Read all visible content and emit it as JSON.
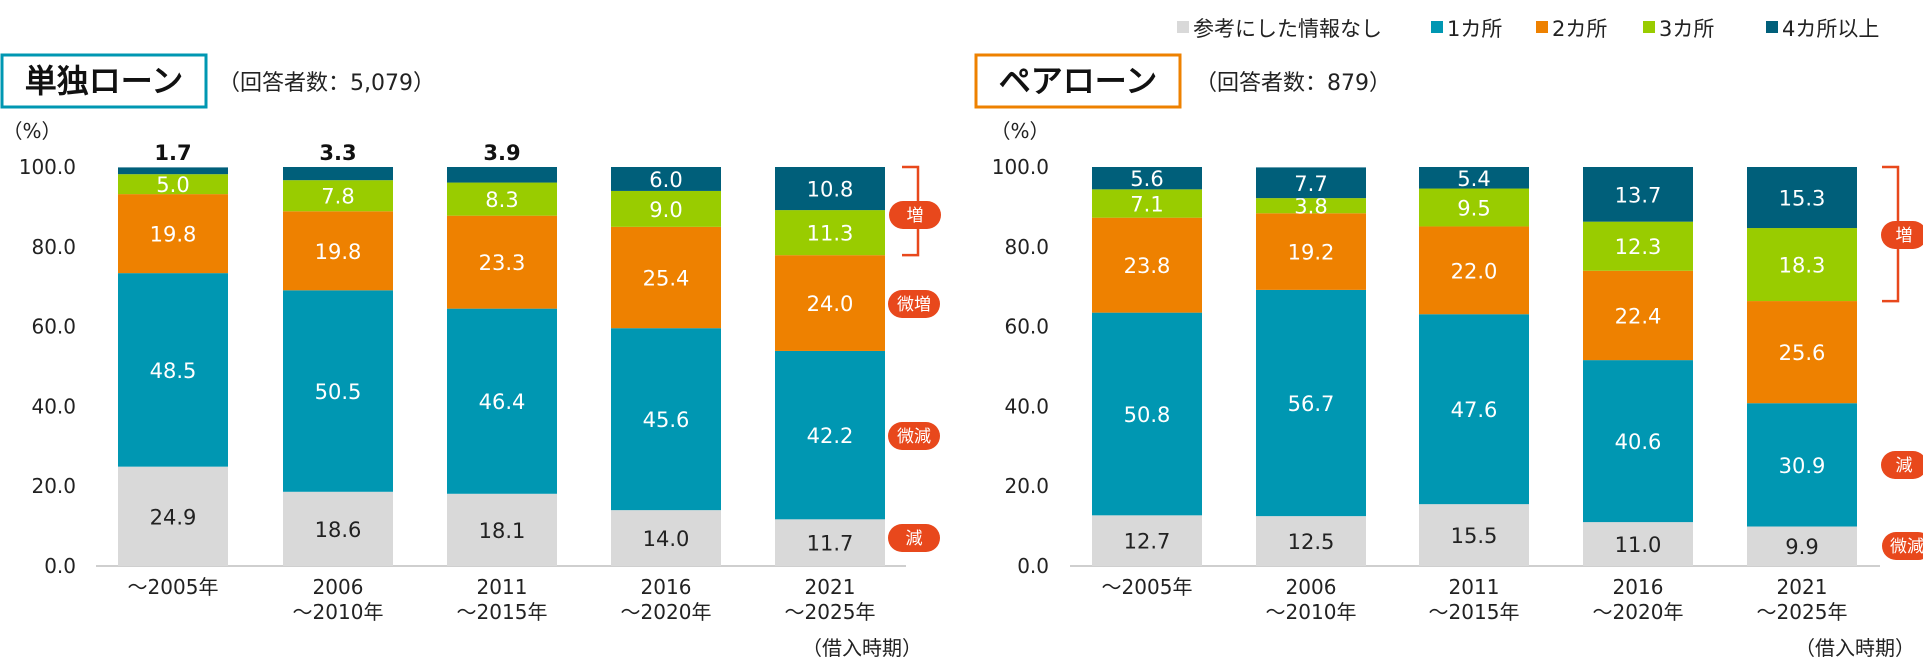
{
  "legend": {
    "items": [
      {
        "label": "参考にした情報なし",
        "color": "#d9d9d9"
      },
      {
        "label": "1カ所",
        "color": "#0097b2"
      },
      {
        "label": "2カ所",
        "color": "#ee8100"
      },
      {
        "label": "3カ所",
        "color": "#99cc00"
      },
      {
        "label": "4カ所以上",
        "color": "#005f7a"
      }
    ]
  },
  "period_caption": "（借入時期）",
  "chart_data": [
    {
      "type": "bar",
      "stacked": true,
      "title": "単独ローン",
      "subtitle": "（回答者数：5,079）",
      "title_color": "#0097b2",
      "ylabel": "（%）",
      "ylim": [
        0,
        100
      ],
      "yticks": [
        "100.0",
        "80.0",
        "60.0",
        "40.0",
        "20.0",
        "0.0"
      ],
      "categories": [
        {
          "line1": "～2005年",
          "line2": ""
        },
        {
          "line1": "2006",
          "line2": "～2010年"
        },
        {
          "line1": "2011",
          "line2": "～2015年"
        },
        {
          "line1": "2016",
          "line2": "～2020年"
        },
        {
          "line1": "2021",
          "line2": "～2025年"
        }
      ],
      "series": [
        {
          "name": "参考にした情報なし",
          "values": [
            24.9,
            18.6,
            18.1,
            14.0,
            11.7
          ]
        },
        {
          "name": "1カ所",
          "values": [
            48.5,
            50.5,
            46.4,
            45.6,
            42.2
          ]
        },
        {
          "name": "2カ所",
          "values": [
            19.8,
            19.8,
            23.3,
            25.4,
            24.0
          ]
        },
        {
          "name": "3カ所",
          "values": [
            5.0,
            7.8,
            8.3,
            9.0,
            11.3
          ]
        },
        {
          "name": "4カ所以上",
          "values": [
            1.7,
            3.3,
            3.9,
            6.0,
            10.8
          ]
        }
      ],
      "outside_labels": [
        "1.7",
        "3.3",
        "3.9"
      ],
      "annotations": [
        {
          "text": "増",
          "target": "3カ所-4カ所以上",
          "bracket": true
        },
        {
          "text": "微増",
          "target": "2カ所",
          "bracket": false
        },
        {
          "text": "微減",
          "target": "1カ所",
          "bracket": false
        },
        {
          "text": "減",
          "target": "参考にした情報なし",
          "bracket": false
        }
      ]
    },
    {
      "type": "bar",
      "stacked": true,
      "title": "ペアローン",
      "subtitle": "（回答者数：879）",
      "title_color": "#ee8100",
      "ylabel": "（%）",
      "ylim": [
        0,
        100
      ],
      "yticks": [
        "100.0",
        "80.0",
        "60.0",
        "40.0",
        "20.0",
        "0.0"
      ],
      "categories": [
        {
          "line1": "～2005年",
          "line2": ""
        },
        {
          "line1": "2006",
          "line2": "～2010年"
        },
        {
          "line1": "2011",
          "line2": "～2015年"
        },
        {
          "line1": "2016",
          "line2": "～2020年"
        },
        {
          "line1": "2021",
          "line2": "～2025年"
        }
      ],
      "series": [
        {
          "name": "参考にした情報なし",
          "values": [
            12.7,
            12.5,
            15.5,
            11.0,
            9.9
          ]
        },
        {
          "name": "1カ所",
          "values": [
            50.8,
            56.7,
            47.6,
            40.6,
            30.9
          ]
        },
        {
          "name": "2カ所",
          "values": [
            23.8,
            19.2,
            22.0,
            22.4,
            25.6
          ]
        },
        {
          "name": "3カ所",
          "values": [
            7.1,
            3.8,
            9.5,
            12.3,
            18.3
          ]
        },
        {
          "name": "4カ所以上",
          "values": [
            5.6,
            7.7,
            5.4,
            13.7,
            15.3
          ]
        }
      ],
      "outside_labels": [],
      "annotations": [
        {
          "text": "増",
          "target": "3カ所-4カ所以上",
          "bracket": true
        },
        {
          "text": "減",
          "target": "1カ所",
          "bracket": false
        },
        {
          "text": "微減",
          "target": "参考にした情報なし",
          "bracket": false
        }
      ]
    }
  ]
}
